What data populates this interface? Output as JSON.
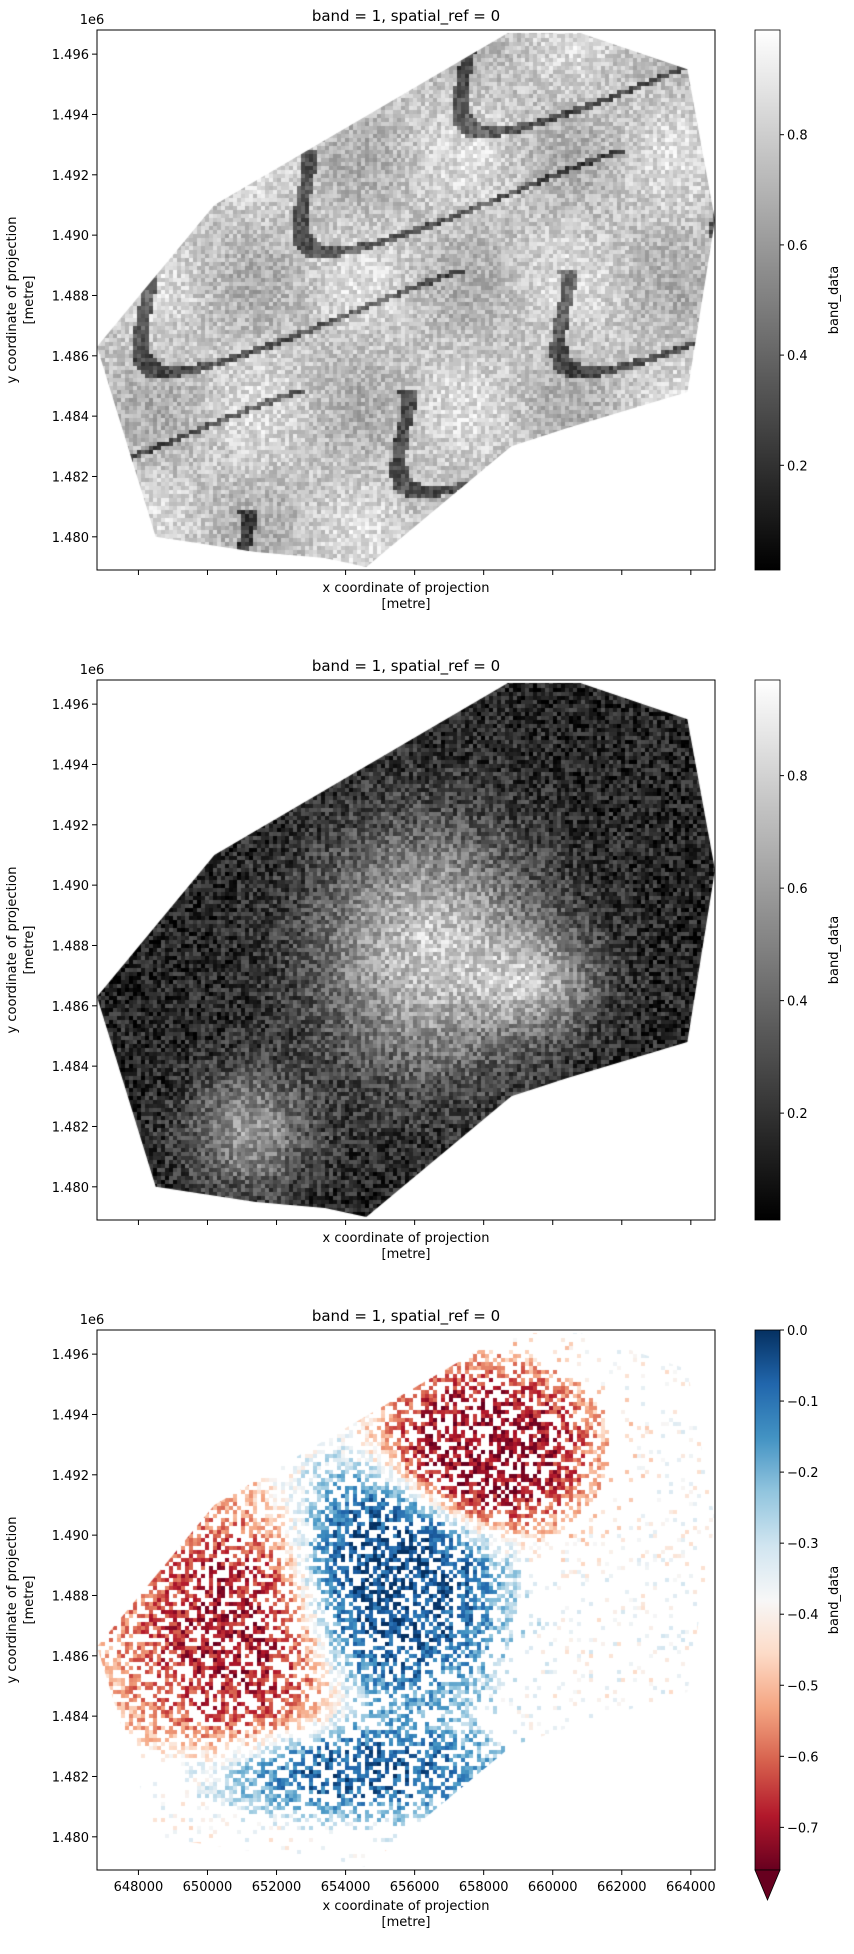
{
  "chart_data": [
    {
      "type": "heatmap",
      "title": "band = 1, spatial_ref = 0",
      "xlabel": "x coordinate of projection\n[metre]",
      "ylabel": "y coordinate of projection\n[metre]",
      "y_offset_label": "1e6",
      "xlim": [
        646800,
        664700
      ],
      "ylim": [
        1.4789,
        1.4968
      ],
      "yticks": [
        1.48,
        1.482,
        1.484,
        1.486,
        1.488,
        1.49,
        1.492,
        1.494,
        1.496
      ],
      "ytick_labels": [
        "1.480",
        "1.482",
        "1.484",
        "1.486",
        "1.488",
        "1.490",
        "1.492",
        "1.494",
        "1.496"
      ],
      "xticks": [
        648000,
        650000,
        652000,
        654000,
        656000,
        658000,
        660000,
        662000,
        664000
      ],
      "xtick_labels": [],
      "colormap": "gray",
      "colorbar": {
        "label": "band_data",
        "range": [
          0.01,
          0.99
        ],
        "ticks": [
          0.2,
          0.4,
          0.6,
          0.8
        ],
        "tick_labels": [
          "0.2",
          "0.4",
          "0.6",
          "0.8"
        ],
        "extend": "none"
      }
    },
    {
      "type": "heatmap",
      "title": "band = 1, spatial_ref = 0",
      "xlabel": "x coordinate of projection\n[metre]",
      "ylabel": "y coordinate of projection\n[metre]",
      "y_offset_label": "1e6",
      "xlim": [
        646800,
        664700
      ],
      "ylim": [
        1.4789,
        1.4968
      ],
      "yticks": [
        1.48,
        1.482,
        1.484,
        1.486,
        1.488,
        1.49,
        1.492,
        1.494,
        1.496
      ],
      "ytick_labels": [
        "1.480",
        "1.482",
        "1.484",
        "1.486",
        "1.488",
        "1.490",
        "1.492",
        "1.494",
        "1.496"
      ],
      "xticks": [
        648000,
        650000,
        652000,
        654000,
        656000,
        658000,
        660000,
        662000,
        664000
      ],
      "xtick_labels": [],
      "colormap": "gray",
      "colorbar": {
        "label": "band_data",
        "range": [
          0.01,
          0.97
        ],
        "ticks": [
          0.2,
          0.4,
          0.6,
          0.8
        ],
        "tick_labels": [
          "0.2",
          "0.4",
          "0.6",
          "0.8"
        ],
        "extend": "none"
      }
    },
    {
      "type": "heatmap",
      "title": "band = 1, spatial_ref = 0",
      "xlabel": "x coordinate of projection\n[metre]",
      "ylabel": "y coordinate of projection\n[metre]",
      "y_offset_label": "1e6",
      "xlim": [
        646800,
        664700
      ],
      "ylim": [
        1.4789,
        1.4968
      ],
      "yticks": [
        1.48,
        1.482,
        1.484,
        1.486,
        1.488,
        1.49,
        1.492,
        1.494,
        1.496
      ],
      "ytick_labels": [
        "1.480",
        "1.482",
        "1.484",
        "1.486",
        "1.488",
        "1.490",
        "1.492",
        "1.494",
        "1.496"
      ],
      "xticks": [
        648000,
        650000,
        652000,
        654000,
        656000,
        658000,
        660000,
        662000,
        664000
      ],
      "xtick_labels": [
        "648000",
        "650000",
        "652000",
        "654000",
        "656000",
        "658000",
        "660000",
        "662000",
        "664000"
      ],
      "colormap": "RdBu",
      "colorbar": {
        "label": "band_data",
        "range": [
          -0.76,
          0.0
        ],
        "ticks": [
          -0.7,
          -0.6,
          -0.5,
          -0.4,
          -0.3,
          -0.2,
          -0.1,
          0.0
        ],
        "tick_labels": [
          "−0.7",
          "−0.6",
          "−0.5",
          "−0.4",
          "−0.3",
          "−0.2",
          "−0.1",
          "0.0"
        ],
        "extend": "min"
      }
    }
  ]
}
